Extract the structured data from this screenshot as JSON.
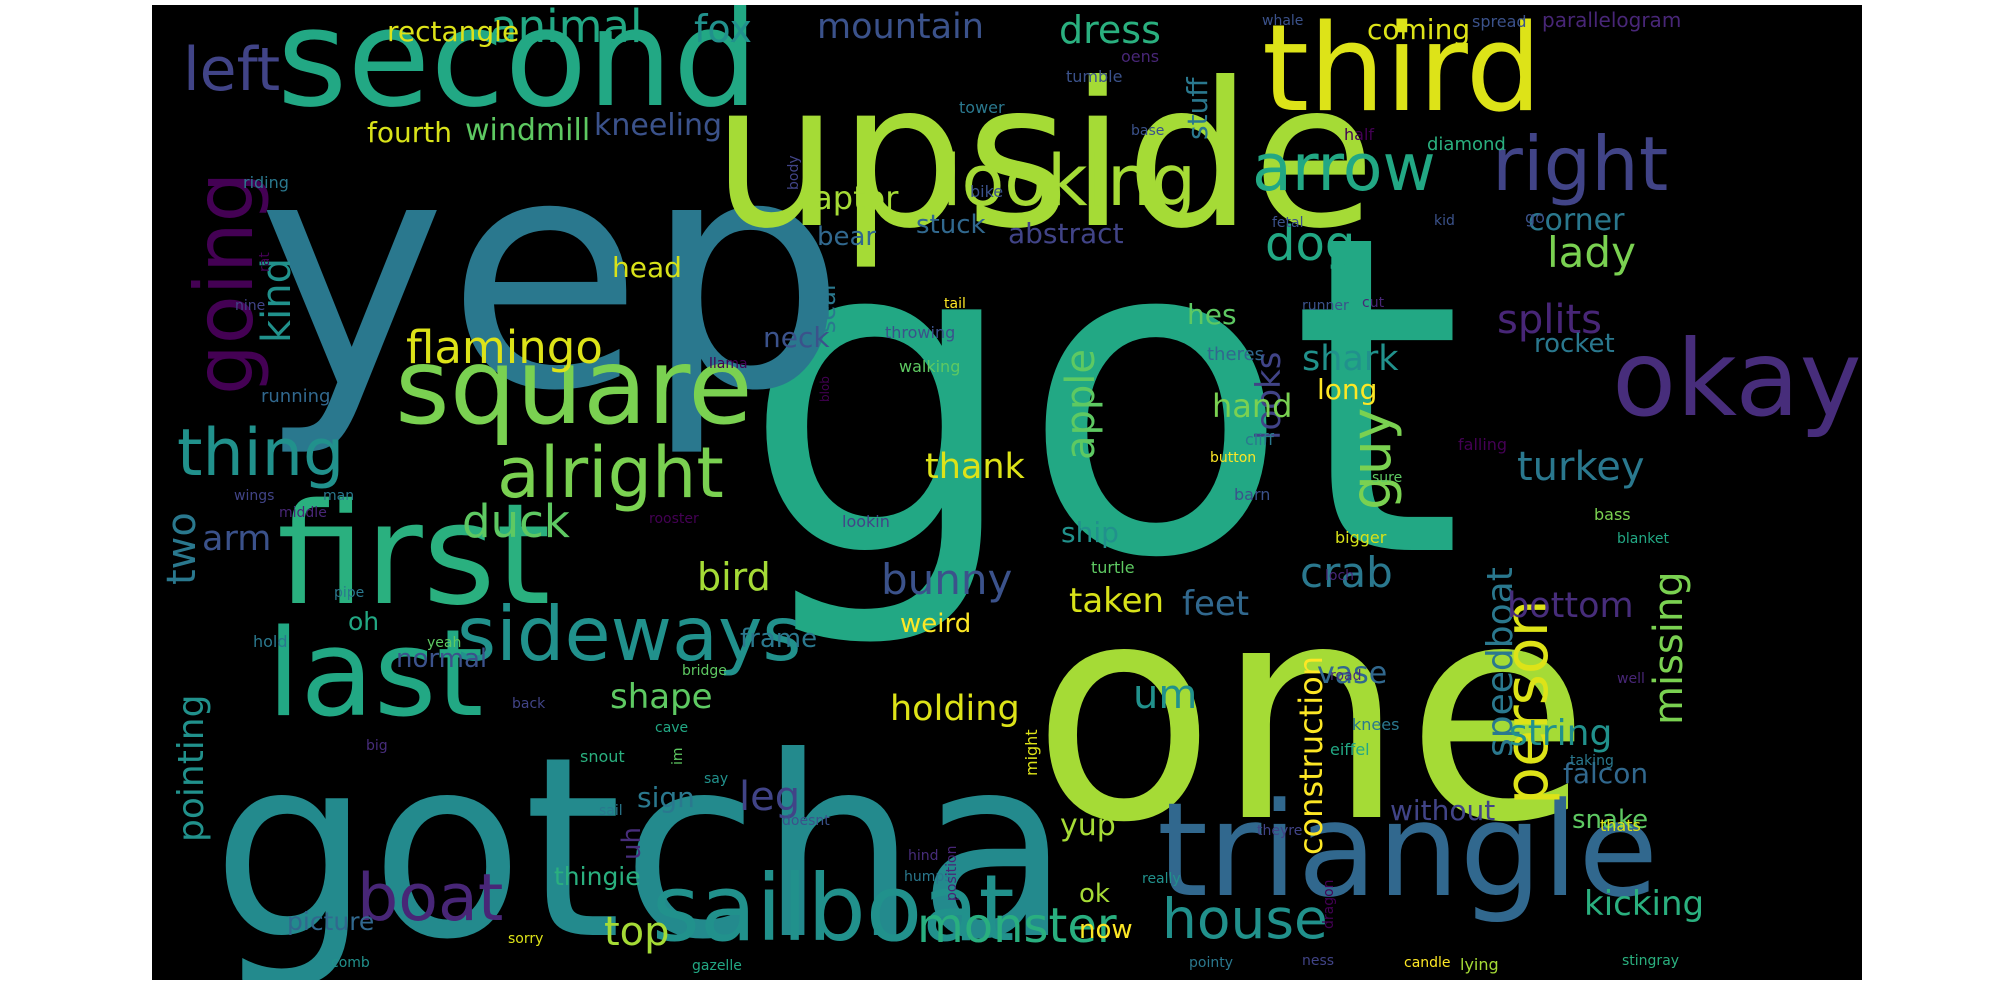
{
  "word_cloud": {
    "background_color": "#000000",
    "page_background": "#ffffff",
    "palette": "viridis",
    "words": [
      {
        "text": "got",
        "color": "#22a884"
      },
      {
        "text": "one",
        "color": "#a5db36"
      },
      {
        "text": "yep",
        "color": "#2a788e"
      },
      {
        "text": "gotcha",
        "color": "#238a8d"
      },
      {
        "text": "upside",
        "color": "#a5db36"
      },
      {
        "text": "second",
        "color": "#22a884"
      },
      {
        "text": "third",
        "color": "#dde318"
      },
      {
        "text": "first",
        "color": "#2ab07f"
      },
      {
        "text": "triangle",
        "color": "#31688e"
      },
      {
        "text": "square",
        "color": "#7ad151"
      },
      {
        "text": "last",
        "color": "#22a884"
      },
      {
        "text": "sailboat",
        "color": "#21918c"
      },
      {
        "text": "okay",
        "color": "#472d7b"
      },
      {
        "text": "going",
        "color": "#440154"
      },
      {
        "text": "sideways",
        "color": "#21918c"
      },
      {
        "text": "looking",
        "color": "#a5db36"
      },
      {
        "text": "right",
        "color": "#414487"
      },
      {
        "text": "arrow",
        "color": "#22a884"
      },
      {
        "text": "alright",
        "color": "#7ad151"
      },
      {
        "text": "thing",
        "color": "#21918c"
      },
      {
        "text": "person",
        "color": "#dde318"
      },
      {
        "text": "boat",
        "color": "#482677"
      },
      {
        "text": "left",
        "color": "#414487"
      },
      {
        "text": "guy",
        "color": "#7ad151"
      },
      {
        "text": "house",
        "color": "#21918c"
      },
      {
        "text": "monster",
        "color": "#29af7f"
      },
      {
        "text": "dog",
        "color": "#22a884"
      },
      {
        "text": "flamingo",
        "color": "#dde318"
      },
      {
        "text": "animal",
        "color": "#22a884"
      },
      {
        "text": "fox",
        "color": "#21918c"
      },
      {
        "text": "mountain",
        "color": "#3b528b"
      },
      {
        "text": "dress",
        "color": "#2ab07f"
      },
      {
        "text": "bunny",
        "color": "#3b528b"
      },
      {
        "text": "duck",
        "color": "#5ec962"
      },
      {
        "text": "crab",
        "color": "#2a788e"
      },
      {
        "text": "splits",
        "color": "#482677"
      },
      {
        "text": "lady",
        "color": "#7ad151"
      },
      {
        "text": "two",
        "color": "#2a788e"
      },
      {
        "text": "kind",
        "color": "#21918c"
      },
      {
        "text": "apple",
        "color": "#5ec962"
      },
      {
        "text": "missing",
        "color": "#7ad151"
      },
      {
        "text": "speedboat",
        "color": "#2a788e"
      },
      {
        "text": "construction",
        "color": "#fde725"
      },
      {
        "text": "pointing",
        "color": "#21918c"
      },
      {
        "text": "bird",
        "color": "#a5db36"
      },
      {
        "text": "turkey",
        "color": "#2a788e"
      },
      {
        "text": "bottom",
        "color": "#472d7b"
      },
      {
        "text": "feet",
        "color": "#31688e"
      },
      {
        "text": "taken",
        "color": "#d8e219"
      },
      {
        "text": "shark",
        "color": "#21918c"
      },
      {
        "text": "string",
        "color": "#21918c"
      },
      {
        "text": "holding",
        "color": "#dde318"
      },
      {
        "text": "leg",
        "color": "#414487"
      },
      {
        "text": "shape",
        "color": "#5ec962"
      },
      {
        "text": "looks",
        "color": "#414487"
      },
      {
        "text": "kicking",
        "color": "#2ab07f"
      },
      {
        "text": "raptor",
        "color": "#a5db36"
      },
      {
        "text": "hes",
        "color": "#5ec962"
      },
      {
        "text": "hand",
        "color": "#7ad151"
      },
      {
        "text": "um",
        "color": "#21918c"
      },
      {
        "text": "arm",
        "color": "#3b528b"
      },
      {
        "text": "thank",
        "color": "#dde318"
      },
      {
        "text": "top",
        "color": "#a5db36"
      },
      {
        "text": "vase",
        "color": "#31688e"
      },
      {
        "text": "long",
        "color": "#fde725"
      },
      {
        "text": "rocket",
        "color": "#2a788e"
      },
      {
        "text": "corner",
        "color": "#2a788e"
      },
      {
        "text": "windmill",
        "color": "#5ec962"
      },
      {
        "text": "kneeling",
        "color": "#3b528b"
      },
      {
        "text": "fourth",
        "color": "#d8e219"
      },
      {
        "text": "rectangle",
        "color": "#dde318"
      },
      {
        "text": "coming",
        "color": "#dde318"
      },
      {
        "text": "stuff",
        "color": "#2a788e"
      },
      {
        "text": "abstract",
        "color": "#414487"
      },
      {
        "text": "stuck",
        "color": "#31688e"
      },
      {
        "text": "bear",
        "color": "#31688e"
      },
      {
        "text": "head",
        "color": "#d8e219"
      },
      {
        "text": "neck",
        "color": "#3b528b"
      },
      {
        "text": "seal",
        "color": "#2a788e"
      },
      {
        "text": "ship",
        "color": "#21918c"
      },
      {
        "text": "frame",
        "color": "#2a788e"
      },
      {
        "text": "weird",
        "color": "#fde725"
      },
      {
        "text": "oh",
        "color": "#22a884"
      },
      {
        "text": "normal",
        "color": "#3b528b"
      },
      {
        "text": "sign",
        "color": "#2a788e"
      },
      {
        "text": "uh",
        "color": "#472d7b"
      },
      {
        "text": "thingie",
        "color": "#2ab07f"
      },
      {
        "text": "picture",
        "color": "#31688e"
      },
      {
        "text": "yup",
        "color": "#a5db36"
      },
      {
        "text": "ok",
        "color": "#a5db36"
      },
      {
        "text": "now",
        "color": "#fde725"
      },
      {
        "text": "without",
        "color": "#414487"
      },
      {
        "text": "falcon",
        "color": "#31688e"
      },
      {
        "text": "snake",
        "color": "#5ec962"
      },
      {
        "text": "parallelogram",
        "color": "#482677"
      },
      {
        "text": "spread",
        "color": "#3b528b"
      },
      {
        "text": "whale",
        "color": "#3b528b"
      },
      {
        "text": "tower",
        "color": "#2a788e"
      },
      {
        "text": "tumble",
        "color": "#3b528b"
      },
      {
        "text": "oens",
        "color": "#482677"
      },
      {
        "text": "base",
        "color": "#3b528b"
      },
      {
        "text": "half",
        "color": "#440154"
      },
      {
        "text": "diamond",
        "color": "#2ab07f"
      },
      {
        "text": "bike",
        "color": "#3b528b"
      },
      {
        "text": "body",
        "color": "#414487"
      },
      {
        "text": "riding",
        "color": "#2a788e"
      },
      {
        "text": "rat",
        "color": "#440154"
      },
      {
        "text": "kid",
        "color": "#3b528b"
      },
      {
        "text": "go",
        "color": "#3b528b"
      },
      {
        "text": "fetal",
        "color": "#3b528b"
      },
      {
        "text": "runner",
        "color": "#3b528b"
      },
      {
        "text": "cut",
        "color": "#482677"
      },
      {
        "text": "tail",
        "color": "#fde725"
      },
      {
        "text": "nine",
        "color": "#414487"
      },
      {
        "text": "throwing",
        "color": "#3b528b"
      },
      {
        "text": "walking",
        "color": "#5ec962"
      },
      {
        "text": "theres",
        "color": "#31688e"
      },
      {
        "text": "llama",
        "color": "#440154"
      },
      {
        "text": "blob",
        "color": "#440154"
      },
      {
        "text": "running",
        "color": "#31688e"
      },
      {
        "text": "cliff",
        "color": "#2a788e"
      },
      {
        "text": "button",
        "color": "#fde725"
      },
      {
        "text": "falling",
        "color": "#440154"
      },
      {
        "text": "wings",
        "color": "#414487"
      },
      {
        "text": "man",
        "color": "#2a788e"
      },
      {
        "text": "middle",
        "color": "#482677"
      },
      {
        "text": "rooster",
        "color": "#440154"
      },
      {
        "text": "lookin",
        "color": "#414487"
      },
      {
        "text": "barn",
        "color": "#3b528b"
      },
      {
        "text": "sure",
        "color": "#5ec962"
      },
      {
        "text": "bass",
        "color": "#7ad151"
      },
      {
        "text": "bigger",
        "color": "#d8e219"
      },
      {
        "text": "blanket",
        "color": "#22a884"
      },
      {
        "text": "turtle",
        "color": "#5ec962"
      },
      {
        "text": "loch",
        "color": "#482677"
      },
      {
        "text": "pipe",
        "color": "#2a788e"
      },
      {
        "text": "hold",
        "color": "#2a788e"
      },
      {
        "text": "yeah",
        "color": "#5ec962"
      },
      {
        "text": "bridge",
        "color": "#5ec962"
      },
      {
        "text": "road",
        "color": "#472d7b"
      },
      {
        "text": "well",
        "color": "#482677"
      },
      {
        "text": "back",
        "color": "#414487"
      },
      {
        "text": "cave",
        "color": "#22a884"
      },
      {
        "text": "big",
        "color": "#472d7b"
      },
      {
        "text": "im",
        "color": "#5ec962"
      },
      {
        "text": "snout",
        "color": "#2ab07f"
      },
      {
        "text": "might",
        "color": "#dde318"
      },
      {
        "text": "knees",
        "color": "#2a788e"
      },
      {
        "text": "eiffel",
        "color": "#22a884"
      },
      {
        "text": "taking",
        "color": "#2a788e"
      },
      {
        "text": "say",
        "color": "#21918c"
      },
      {
        "text": "sail",
        "color": "#2a788e"
      },
      {
        "text": "doesnt",
        "color": "#3b528b"
      },
      {
        "text": "theyre",
        "color": "#414487"
      },
      {
        "text": "thats",
        "color": "#dde318"
      },
      {
        "text": "hind",
        "color": "#472d7b"
      },
      {
        "text": "humps",
        "color": "#2a788e"
      },
      {
        "text": "position",
        "color": "#482677"
      },
      {
        "text": "really",
        "color": "#21918c"
      },
      {
        "text": "dragon",
        "color": "#440154"
      },
      {
        "text": "sorry",
        "color": "#dde318"
      },
      {
        "text": "comb",
        "color": "#21918c"
      },
      {
        "text": "gazelle",
        "color": "#22a884"
      },
      {
        "text": "pointy",
        "color": "#2a788e"
      },
      {
        "text": "ness",
        "color": "#414487"
      },
      {
        "text": "candle",
        "color": "#fde725"
      },
      {
        "text": "lying",
        "color": "#a5db36"
      },
      {
        "text": "stingray",
        "color": "#2ab07f"
      }
    ]
  }
}
